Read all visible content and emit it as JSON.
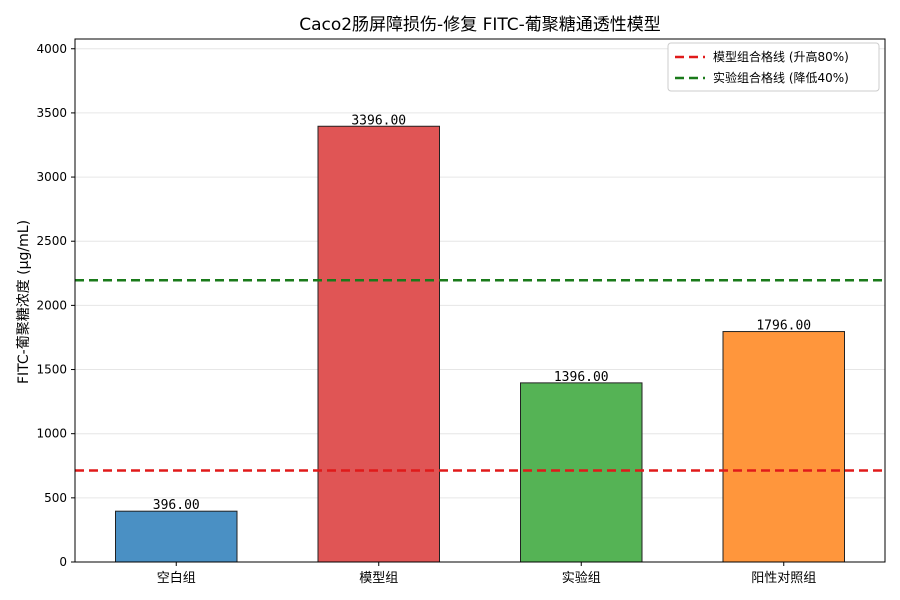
{
  "chart_data": {
    "type": "bar",
    "title": "Caco2肠屏障损伤-修复 FITC-葡聚糖通透性模型",
    "xlabel": "",
    "ylabel": "FITC-葡聚糖浓度 (μg/mL)",
    "categories": [
      "空白组",
      "模型组",
      "实验组",
      "阳性对照组"
    ],
    "values": [
      396,
      3396,
      1396,
      1796
    ],
    "value_labels": [
      "396.00",
      "3396.00",
      "1396.00",
      "1796.00"
    ],
    "bar_colors": [
      "#4a90c4",
      "#e05555",
      "#55b355",
      "#ff963c"
    ],
    "ylim": [
      0,
      4076
    ],
    "yticks": [
      0,
      500,
      1000,
      1500,
      2000,
      2500,
      3000,
      3500,
      4000
    ],
    "ytick_labels": [
      "0",
      "500",
      "1000",
      "1500",
      "2000",
      "2500",
      "3000",
      "3500",
      "4000"
    ],
    "grid": "horizontal",
    "reference_lines": [
      {
        "name": "模型组合格线 (升高80%)",
        "value": 713,
        "color": "#e01a1a",
        "style": "dashed"
      },
      {
        "name": "实验组合格线 (降低40%)",
        "value": 2196,
        "color": "#1a7a1a",
        "style": "dashed"
      }
    ],
    "legend_position": "top-right"
  }
}
